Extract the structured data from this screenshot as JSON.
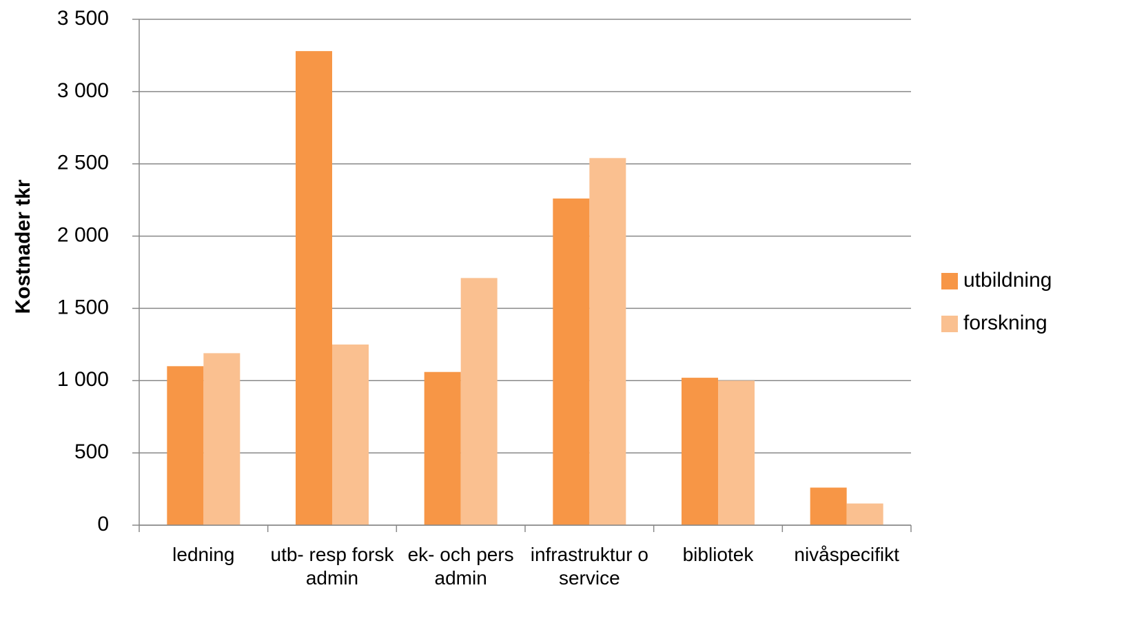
{
  "chart_data": {
    "type": "bar",
    "y_label": "Kostnader tkr",
    "categories": [
      "ledning",
      "utb- resp forsk admin",
      "ek- och pers admin",
      "infrastruktur o service",
      "bibliotek",
      "nivåspecifikt"
    ],
    "series": [
      {
        "name": "utbildning",
        "color": "#f79646",
        "values": [
          1100,
          3280,
          1060,
          2260,
          1020,
          260
        ]
      },
      {
        "name": "forskning",
        "color": "#fac090",
        "values": [
          1190,
          1250,
          1710,
          2540,
          1000,
          150
        ]
      }
    ],
    "ylim": [
      0,
      3500
    ],
    "yticks": [
      0,
      500,
      {
        "value": 1000,
        "label": "1 000"
      },
      {
        "value": 1500,
        "label": "1 500"
      },
      {
        "value": 2000,
        "label": "2 000"
      },
      {
        "value": 2500,
        "label": "2 500"
      },
      {
        "value": 3000,
        "label": "3 000"
      },
      {
        "value": 3500,
        "label": "3 500"
      }
    ],
    "grid": true,
    "legend": "right"
  }
}
